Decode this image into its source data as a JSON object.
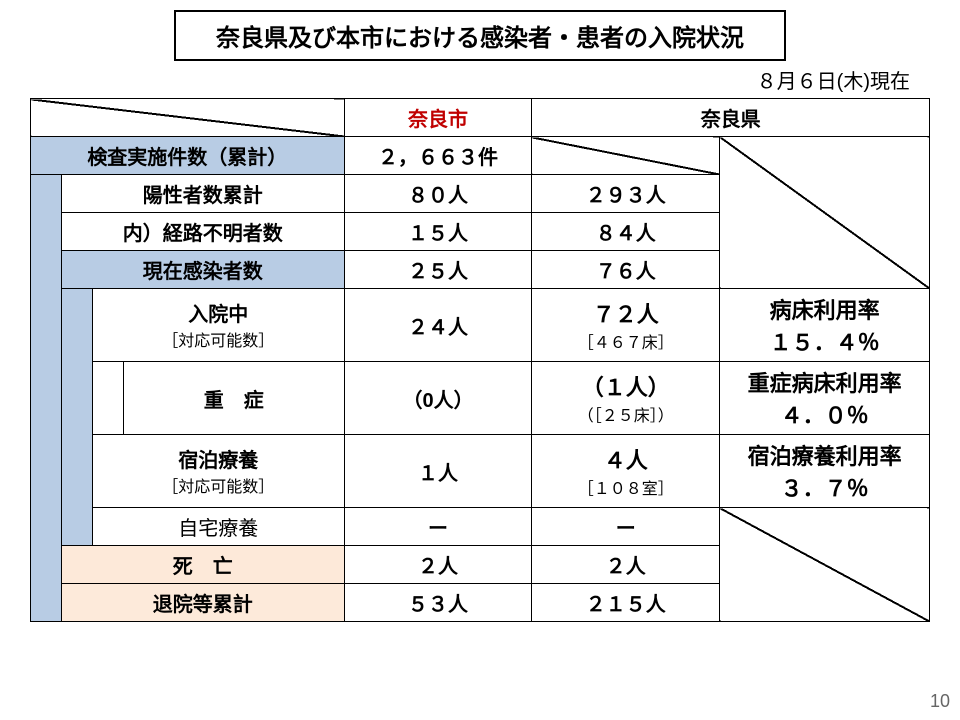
{
  "title": "奈良県及び本市における感染者・患者の入院状況",
  "date": "８月６日(木)現在",
  "headers": {
    "city": "奈良市",
    "pref": "奈良県"
  },
  "rows": {
    "tests": {
      "label": "検査実施件数（累計）",
      "city": "２，６６３件",
      "pref": ""
    },
    "positive": {
      "label": "陽性者数累計",
      "city": "８０人",
      "pref": "２９３人"
    },
    "unknown": {
      "label": "内）経路不明者数",
      "city": "１５人",
      "pref": "８４人"
    },
    "current": {
      "label": "現在感染者数",
      "city": "２５人",
      "pref": "７６人"
    },
    "hosp": {
      "label": "入院中",
      "sub": "［対応可能数］",
      "city": "２４人",
      "pref": "７２人",
      "pref_sub": "［４６７床］",
      "rate_lbl": "病床利用率",
      "rate": "１５．４％"
    },
    "severe": {
      "label": "重　症",
      "city": "（0人）",
      "pref": "（１人）",
      "pref_sub": "（［２５床］）",
      "rate_lbl": "重症病床利用率",
      "rate": "４．０％"
    },
    "lodging": {
      "label": "宿泊療養",
      "sub": "［対応可能数］",
      "city": "１人",
      "pref": "４人",
      "pref_sub": "［１０８室］",
      "rate_lbl": "宿泊療養利用率",
      "rate": "３．７％"
    },
    "home": {
      "label": "自宅療養",
      "city": "ー",
      "pref": "ー"
    },
    "death": {
      "label": "死　亡",
      "city": "２人",
      "pref": "２人"
    },
    "discharged": {
      "label": "退院等累計",
      "city": "５３人",
      "pref": "２１５人"
    }
  },
  "page": "10"
}
